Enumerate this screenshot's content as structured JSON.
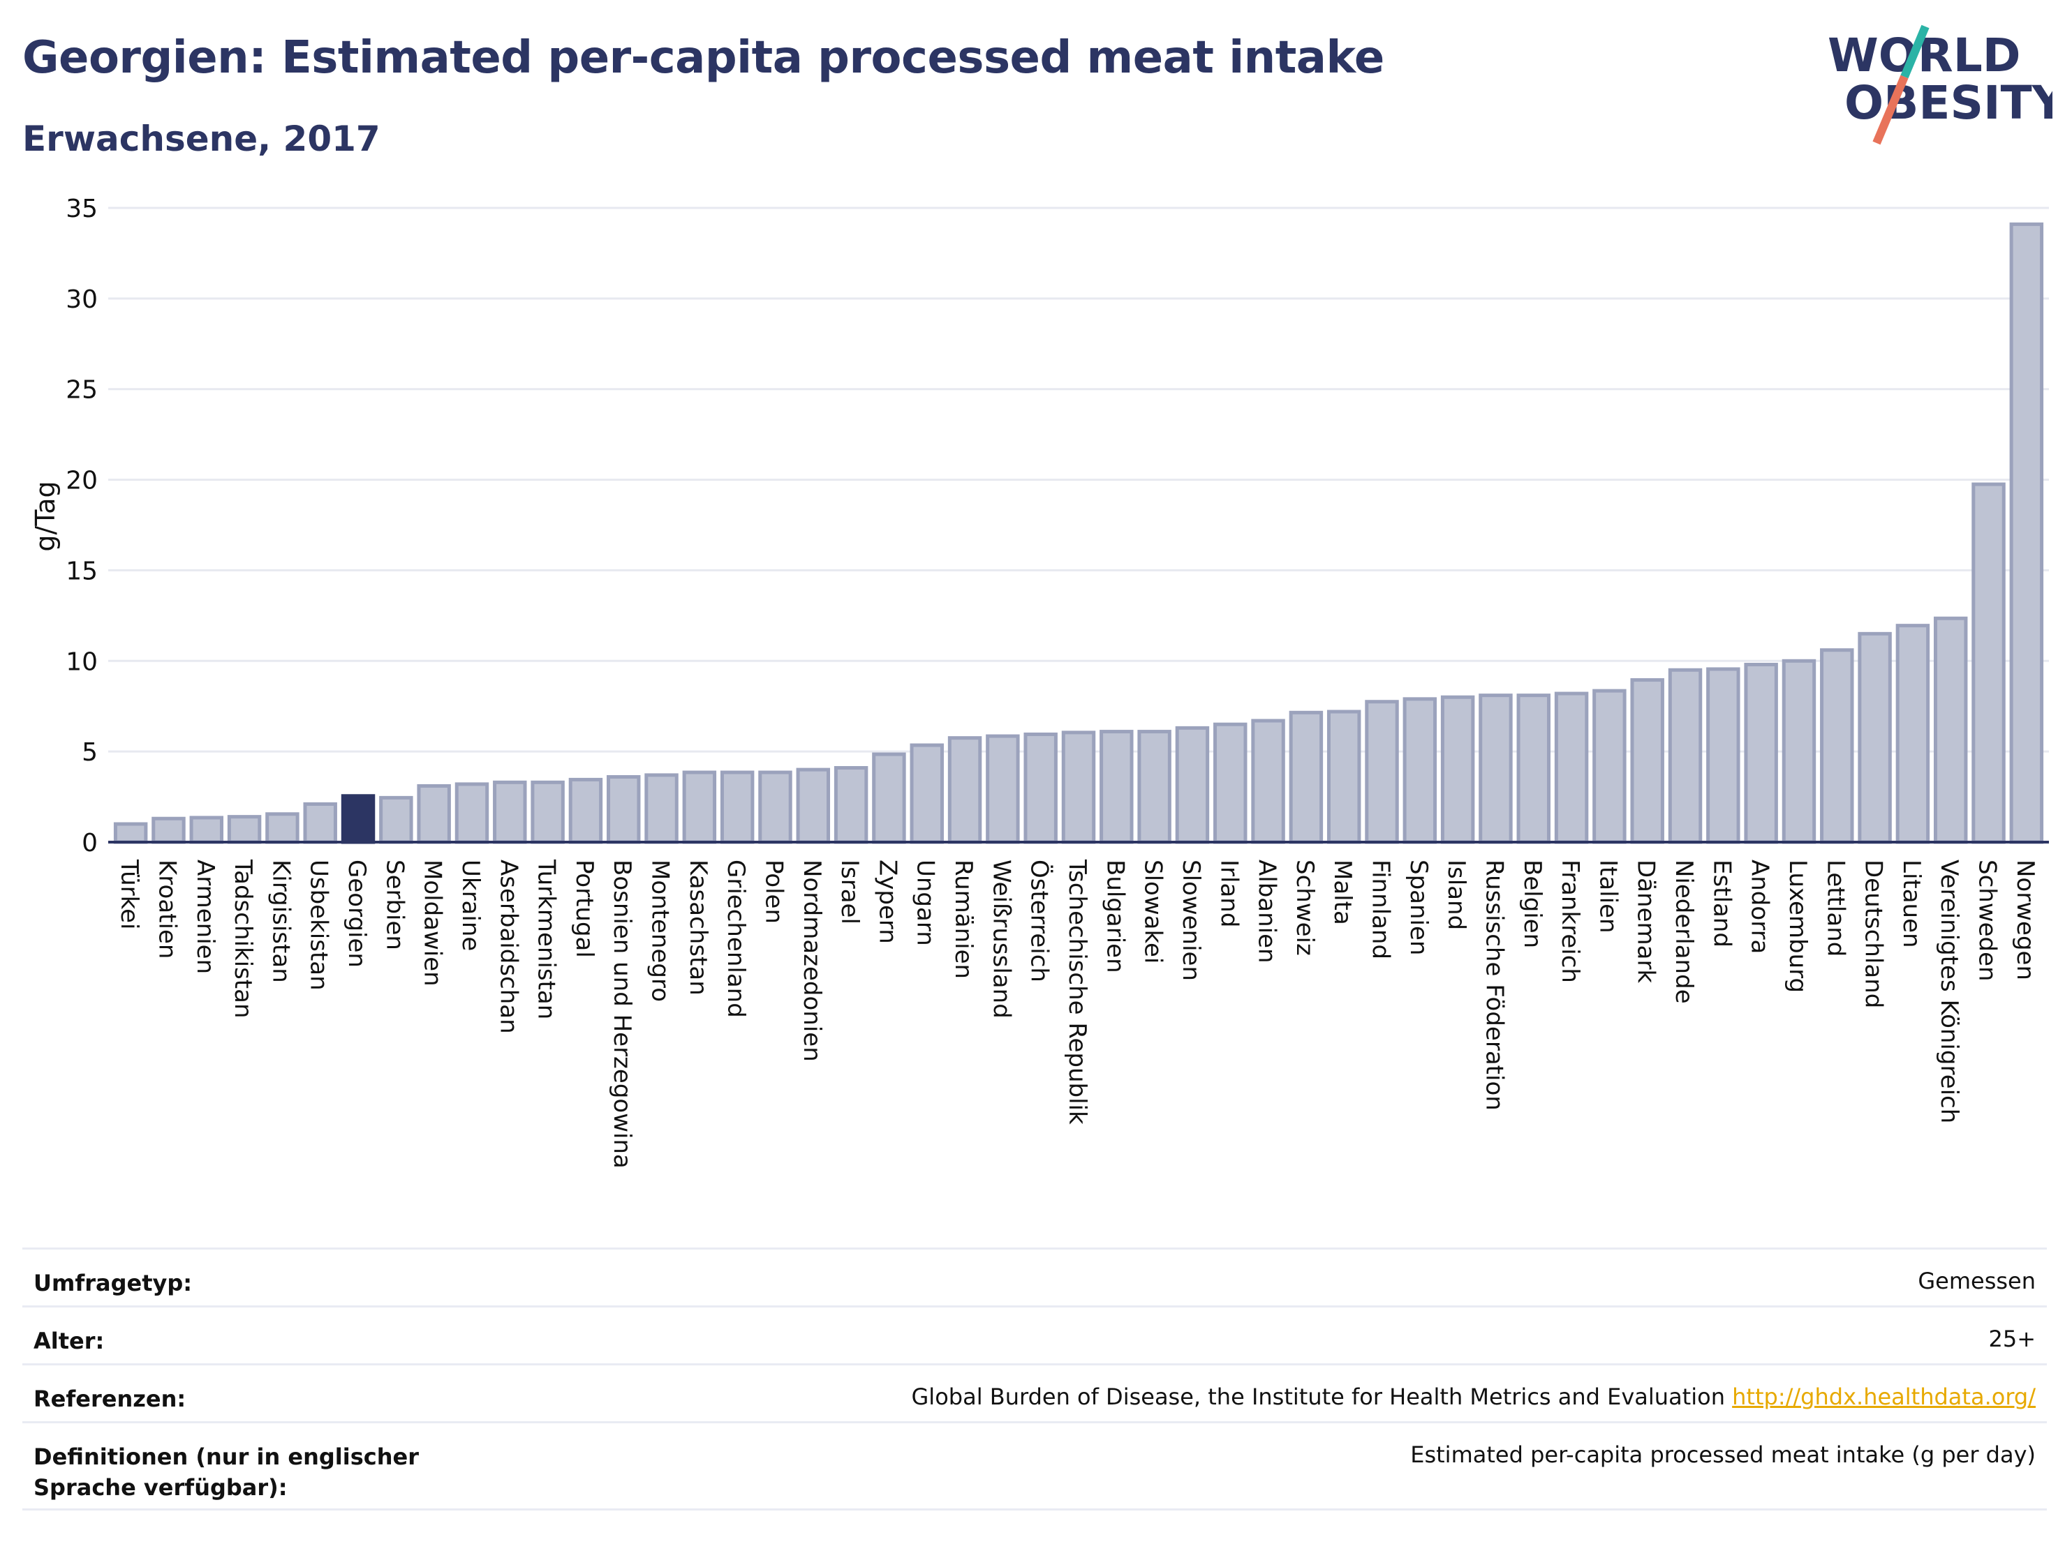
{
  "header": {
    "title": "Georgien: Estimated per-capita processed meat intake",
    "subtitle": "Erwachsene, 2017"
  },
  "logo": {
    "line1": "WORLD",
    "line2": "OBESITY",
    "slash_colors": [
      "#2bb3a6",
      "#e8735a"
    ],
    "text_color": "#2c3563"
  },
  "colors": {
    "bar_default": "#bec3d3",
    "bar_border": "#9ba2bc",
    "bar_highlight": "#2c3563",
    "grid": "#e7e9f0",
    "axis": "#2c3563"
  },
  "chart_data": {
    "type": "bar",
    "title": "Georgien: Estimated per-capita processed meat intake",
    "subtitle": "Erwachsene, 2017",
    "xlabel": "",
    "ylabel": "g/Tag",
    "ylim": [
      0,
      35
    ],
    "yticks": [
      0,
      5,
      10,
      15,
      20,
      25,
      30,
      35
    ],
    "grid": true,
    "highlight": "Georgien",
    "categories": [
      "Türkei",
      "Kroatien",
      "Armenien",
      "Tadschikistan",
      "Kirgisistan",
      "Usbekistan",
      "Georgien",
      "Serbien",
      "Moldawien",
      "Ukraine",
      "Aserbaidschan",
      "Turkmenistan",
      "Portugal",
      "Bosnien und Herzegowina",
      "Montenegro",
      "Kasachstan",
      "Griechenland",
      "Polen",
      "Nordmazedonien",
      "Israel",
      "Zypern",
      "Ungarn",
      "Rumänien",
      "Weißrussland",
      "Österreich",
      "Tschechische Republik",
      "Bulgarien",
      "Slowakei",
      "Slowenien",
      "Irland",
      "Albanien",
      "Schweiz",
      "Malta",
      "Finnland",
      "Spanien",
      "Island",
      "Russische Föderation",
      "Belgien",
      "Frankreich",
      "Italien",
      "Dänemark",
      "Niederlande",
      "Estland",
      "Andorra",
      "Luxemburg",
      "Lettland",
      "Deutschland",
      "Litauen",
      "Vereinigtes Königreich",
      "Schweden",
      "Norwegen"
    ],
    "values": [
      1.0,
      1.3,
      1.35,
      1.4,
      1.55,
      2.1,
      2.55,
      2.45,
      3.1,
      3.2,
      3.3,
      3.3,
      3.45,
      3.6,
      3.7,
      3.85,
      3.85,
      3.85,
      4.0,
      4.1,
      4.85,
      5.35,
      5.75,
      5.85,
      5.95,
      6.05,
      6.1,
      6.1,
      6.3,
      6.5,
      6.7,
      7.15,
      7.2,
      7.75,
      7.9,
      8.0,
      8.1,
      8.1,
      8.2,
      8.35,
      8.95,
      9.5,
      9.55,
      9.8,
      10.0,
      10.6,
      11.5,
      11.95,
      12.35,
      19.75,
      34.1
    ]
  },
  "info": {
    "rows": [
      {
        "label": "Umfragetyp:",
        "value": "Gemessen"
      },
      {
        "label": "Alter:",
        "value": "25+"
      },
      {
        "label": "Referenzen:",
        "value": "Global Burden of Disease, the Institute for Health Metrics and Evaluation",
        "link": "http://ghdx.healthdata.org/"
      },
      {
        "label": "Definitionen (nur in englischer Sprache verfügbar):",
        "value": "Estimated per-capita processed meat intake (g per day)"
      }
    ]
  }
}
